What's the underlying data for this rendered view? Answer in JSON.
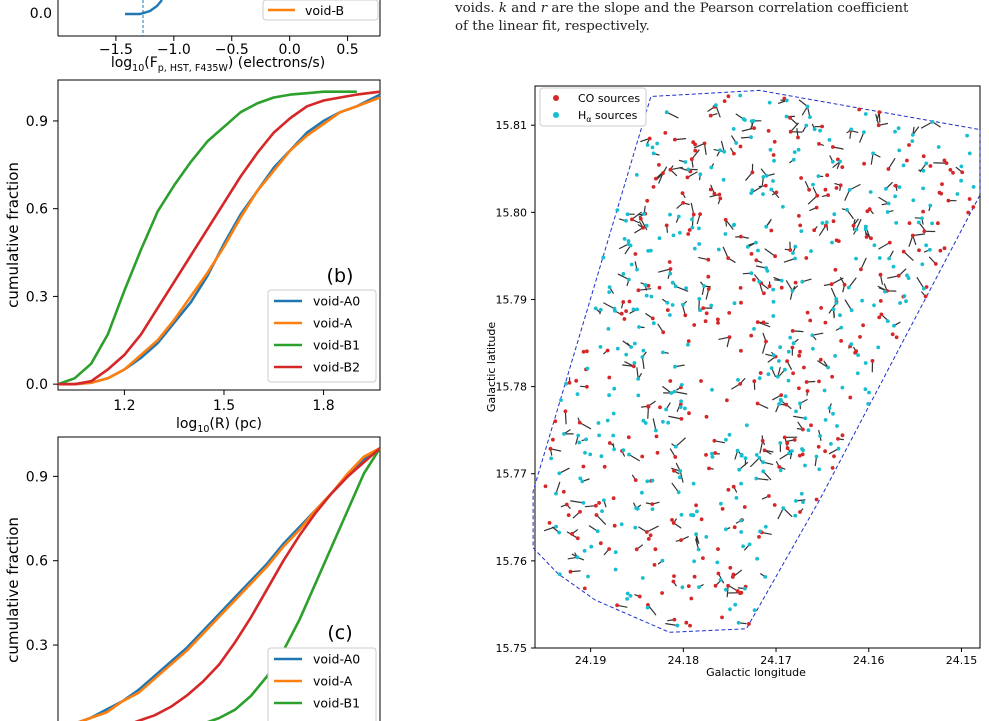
{
  "colors": {
    "void_A0": "#1f77b4",
    "void_A": "#ff7f0e",
    "void_B1": "#2ca02c",
    "void_B2": "#d62728",
    "co": "#d62728",
    "ha": "#17becf",
    "boundary": "#1f2fc9",
    "link": "#333333"
  },
  "caption": {
    "line1_prefix": "voids. ",
    "k": "k",
    "and": " and ",
    "r": "r",
    "line1_suffix": " are the slope and the Pearson correlation coefficient",
    "line2": "of the linear fit, respectively."
  },
  "panel_a": {
    "xticks": [
      "−1.5",
      "−1.0",
      "−0.5",
      "0.0",
      "0.5"
    ],
    "xlabel_base": "log",
    "xlabel_sub": "10",
    "xlabel_rest": "(F",
    "xlabel_rest_sub": "p, HST, F435W",
    "xlabel_unit": ") (electrons/s)",
    "ytick": "0.0",
    "legend_label": "void-B"
  },
  "panel_b": {
    "tag": "(b)",
    "ylabel": "cumulative fraction",
    "yticks": [
      "0.0",
      "0.3",
      "0.6",
      "0.9"
    ],
    "xticks": [
      "1.2",
      "1.5",
      "1.8"
    ],
    "xlabel_base": "log",
    "xlabel_sub": "10",
    "xlabel_rest": "(R) (pc)",
    "legend": [
      "void-A0",
      "void-A",
      "void-B1",
      "void-B2"
    ]
  },
  "panel_c": {
    "tag": "(c)",
    "ylabel": "cumulative fraction",
    "yticks": [
      "0.3",
      "0.6",
      "0.9"
    ],
    "legend": [
      "void-A0",
      "void-A",
      "void-B1"
    ]
  },
  "panel_map": {
    "xlabel": "Galactic longitude",
    "ylabel": "Galactic latitude",
    "xticks": [
      "24.19",
      "24.18",
      "24.17",
      "24.16",
      "24.15"
    ],
    "yticks": [
      "15.75",
      "15.76",
      "15.77",
      "15.78",
      "15.79",
      "15.80",
      "15.81"
    ],
    "legend_co": "CO sources",
    "legend_ha_base": "H",
    "legend_ha_sub": "α",
    "legend_ha_rest": " sources"
  },
  "chart_data": [
    {
      "type": "line",
      "panel": "(b)",
      "xlabel": "log10(R) (pc)",
      "ylabel": "cumulative fraction",
      "xlim": [
        1.0,
        1.97
      ],
      "ylim": [
        -0.02,
        1.04
      ],
      "grid": false,
      "legend_position": "bottom-right",
      "series": [
        {
          "name": "void-A0",
          "x": [
            1.0,
            1.05,
            1.1,
            1.15,
            1.2,
            1.25,
            1.3,
            1.35,
            1.4,
            1.45,
            1.5,
            1.55,
            1.6,
            1.65,
            1.7,
            1.75,
            1.8,
            1.85,
            1.9,
            1.97
          ],
          "y": [
            0.0,
            0.0,
            0.005,
            0.02,
            0.05,
            0.09,
            0.14,
            0.21,
            0.28,
            0.37,
            0.48,
            0.58,
            0.66,
            0.74,
            0.8,
            0.86,
            0.9,
            0.93,
            0.95,
            0.99
          ]
        },
        {
          "name": "void-A",
          "x": [
            1.0,
            1.05,
            1.1,
            1.15,
            1.2,
            1.25,
            1.3,
            1.35,
            1.4,
            1.45,
            1.5,
            1.55,
            1.6,
            1.65,
            1.7,
            1.75,
            1.8,
            1.85,
            1.9,
            1.97
          ],
          "y": [
            0.0,
            0.0,
            0.005,
            0.02,
            0.05,
            0.1,
            0.15,
            0.22,
            0.3,
            0.38,
            0.47,
            0.57,
            0.66,
            0.73,
            0.8,
            0.85,
            0.89,
            0.93,
            0.95,
            0.98
          ]
        },
        {
          "name": "void-B1",
          "x": [
            1.0,
            1.05,
            1.1,
            1.15,
            1.2,
            1.25,
            1.3,
            1.35,
            1.4,
            1.45,
            1.5,
            1.55,
            1.6,
            1.65,
            1.7,
            1.75,
            1.8,
            1.85,
            1.9
          ],
          "y": [
            0.0,
            0.02,
            0.07,
            0.17,
            0.32,
            0.46,
            0.59,
            0.68,
            0.76,
            0.83,
            0.88,
            0.93,
            0.96,
            0.98,
            0.99,
            0.995,
            1.0,
            1.0,
            1.0
          ]
        },
        {
          "name": "void-B2",
          "x": [
            1.0,
            1.05,
            1.1,
            1.15,
            1.2,
            1.25,
            1.3,
            1.35,
            1.4,
            1.45,
            1.5,
            1.55,
            1.6,
            1.65,
            1.7,
            1.75,
            1.8,
            1.85,
            1.9,
            1.97
          ],
          "y": [
            0.0,
            0.0,
            0.01,
            0.05,
            0.1,
            0.17,
            0.26,
            0.35,
            0.44,
            0.53,
            0.62,
            0.71,
            0.79,
            0.86,
            0.91,
            0.95,
            0.97,
            0.98,
            0.99,
            1.0
          ]
        }
      ]
    },
    {
      "type": "line",
      "panel": "(c)",
      "ylabel": "cumulative fraction",
      "ylim": [
        -0.02,
        1.04
      ],
      "grid": false,
      "legend_position": "bottom-right",
      "series": [
        {
          "name": "void-A0",
          "x": [
            0.0,
            0.05,
            0.1,
            0.15,
            0.2,
            0.25,
            0.3,
            0.35,
            0.4,
            0.45,
            0.5,
            0.55,
            0.6,
            0.65,
            0.7,
            0.75,
            0.8,
            0.85,
            0.9,
            0.95,
            1.0
          ],
          "y": [
            0.0,
            0.02,
            0.04,
            0.07,
            0.1,
            0.14,
            0.19,
            0.24,
            0.29,
            0.35,
            0.41,
            0.47,
            0.53,
            0.59,
            0.66,
            0.72,
            0.78,
            0.84,
            0.9,
            0.96,
            1.0
          ]
        },
        {
          "name": "void-A",
          "x": [
            0.0,
            0.05,
            0.1,
            0.15,
            0.2,
            0.25,
            0.3,
            0.35,
            0.4,
            0.45,
            0.5,
            0.55,
            0.6,
            0.65,
            0.7,
            0.75,
            0.8,
            0.85,
            0.9,
            0.95,
            1.0
          ],
          "y": [
            0.0,
            0.02,
            0.04,
            0.06,
            0.1,
            0.13,
            0.18,
            0.23,
            0.28,
            0.34,
            0.4,
            0.46,
            0.52,
            0.58,
            0.65,
            0.71,
            0.78,
            0.84,
            0.91,
            0.97,
            1.0
          ]
        },
        {
          "name": "void-B1",
          "x": [
            0.3,
            0.35,
            0.4,
            0.45,
            0.5,
            0.55,
            0.6,
            0.65,
            0.7,
            0.75,
            0.8,
            0.85,
            0.9,
            0.95,
            1.0
          ],
          "y": [
            0.0,
            0.0,
            0.01,
            0.02,
            0.04,
            0.07,
            0.12,
            0.19,
            0.28,
            0.39,
            0.52,
            0.65,
            0.78,
            0.91,
            1.0
          ]
        },
        {
          "name": "void-B2",
          "x": [
            0.15,
            0.2,
            0.25,
            0.3,
            0.35,
            0.4,
            0.45,
            0.5,
            0.55,
            0.6,
            0.65,
            0.7,
            0.75,
            0.8,
            0.85,
            0.9,
            0.95,
            1.0
          ],
          "y": [
            0.0,
            0.01,
            0.03,
            0.05,
            0.08,
            0.12,
            0.17,
            0.23,
            0.31,
            0.4,
            0.5,
            0.6,
            0.69,
            0.77,
            0.84,
            0.9,
            0.95,
            1.0
          ]
        }
      ]
    },
    {
      "type": "scatter",
      "panel": "map",
      "xlabel": "Galactic longitude",
      "ylabel": "Galactic latitude",
      "xlim": [
        24.196,
        24.148
      ],
      "ylim": [
        15.75,
        15.8145
      ],
      "x_inverted": true,
      "legend_position": "top-left",
      "boundary_polygon": [
        [
          24.1962,
          15.7615
        ],
        [
          24.1935,
          15.7585
        ],
        [
          24.1895,
          15.7555
        ],
        [
          24.1815,
          15.7518
        ],
        [
          24.1732,
          15.7522
        ],
        [
          24.1653,
          15.767
        ],
        [
          24.148,
          15.802
        ],
        [
          24.148,
          15.8095
        ],
        [
          24.1718,
          15.814
        ],
        [
          24.1835,
          15.8133
        ],
        [
          24.1962,
          15.768
        ]
      ],
      "series": [
        {
          "name": "CO sources",
          "count_estimate": 330,
          "x_range": [
            24.195,
            24.149
          ],
          "y_range": [
            15.755,
            15.814
          ]
        },
        {
          "name": "Hα sources",
          "count_estimate": 380,
          "x_range": [
            24.195,
            24.149
          ],
          "y_range": [
            15.755,
            15.814
          ]
        }
      ]
    }
  ]
}
